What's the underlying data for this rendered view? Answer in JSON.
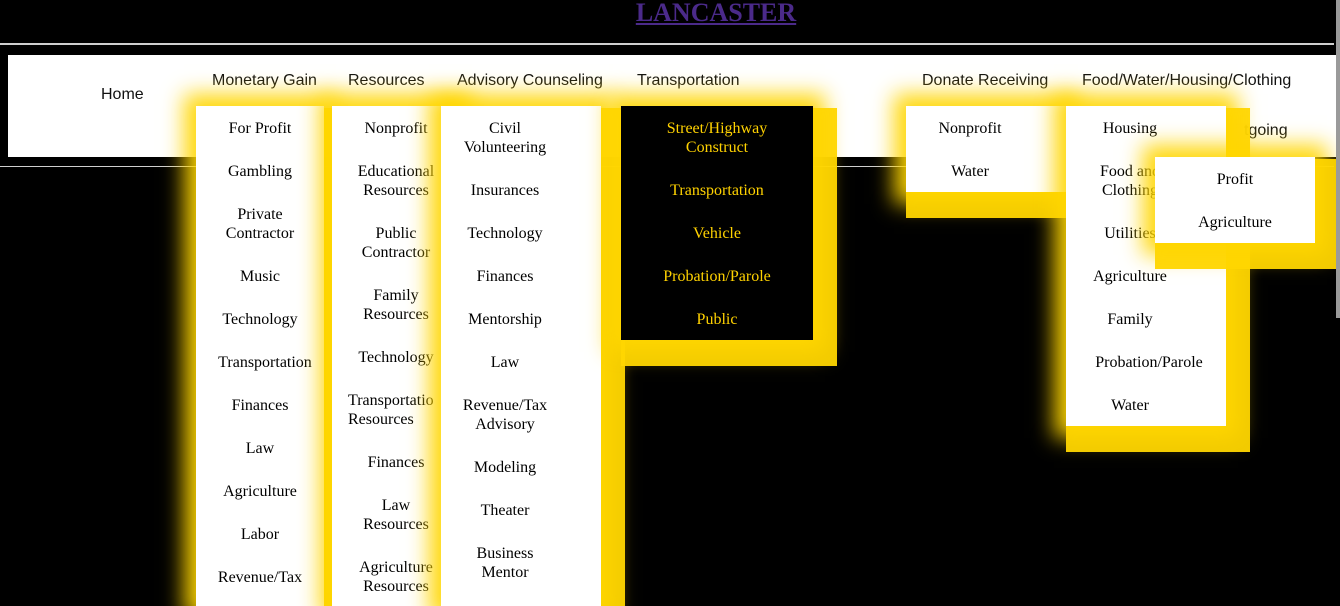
{
  "site": {
    "title": "LANCASTER"
  },
  "nav": {
    "items": [
      "Home",
      "Monetary Gain",
      "Resources",
      "Advisory Counseling",
      "Transportation",
      "Donate Receiving",
      "Food/Water/Housing/Clothing"
    ],
    "outgoing_fragment": "tgoing"
  },
  "menus": {
    "monetary": [
      "For Profit",
      "Gambling",
      "Private Contractor",
      "Music",
      "Technology",
      "Transportation",
      "Finances",
      "Law",
      "Agriculture",
      "Labor",
      "Revenue/Tax"
    ],
    "resources": [
      "Nonprofit",
      "Educational Resources",
      "Public Contractor",
      "Family Resources",
      "Technology",
      "Transportatio Resources",
      "Finances",
      "Law Resources",
      "Agriculture Resources"
    ],
    "advisory": [
      "Civil Volunteering",
      "Insurances",
      "Technology",
      "Finances",
      "Mentorship",
      "Law",
      "Revenue/Tax Advisory",
      "Modeling",
      "Theater",
      "Business Mentor"
    ],
    "transportation": [
      "Street/Highway Construct",
      "Transportation",
      "Vehicle",
      "Probation/Parole",
      "Public"
    ],
    "donate": [
      "Nonprofit",
      "Water"
    ],
    "food": [
      "Housing",
      "Food and Clothing",
      "Utilities",
      "Agriculture",
      "Family",
      "Probation/Parole",
      "Water"
    ],
    "outgoing": [
      "Profit",
      "Agriculture"
    ]
  },
  "colors": {
    "background": "#000000",
    "title": "#4b2a8a",
    "glow": "#ffd600",
    "dark_menu_text": "#ffd200"
  }
}
